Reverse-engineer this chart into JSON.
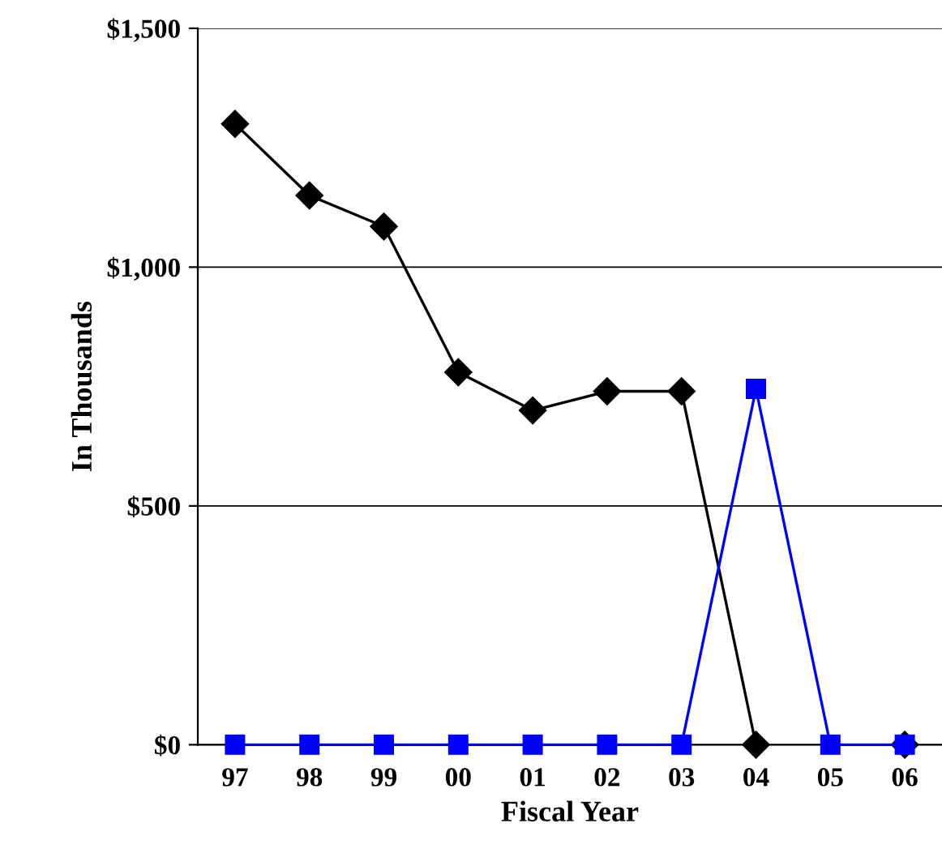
{
  "chart_data": {
    "type": "line",
    "xlabel": "Fiscal Year",
    "ylabel": "In Thousands",
    "categories": [
      "97",
      "98",
      "99",
      "00",
      "01",
      "02",
      "03",
      "04",
      "05",
      "06"
    ],
    "series": [
      {
        "color": "#000000",
        "marker": "diamond",
        "values": [
          1300,
          1150,
          1085,
          780,
          700,
          740,
          740,
          0,
          null,
          0
        ]
      },
      {
        "color": "#0000ff",
        "marker": "square",
        "values": [
          0,
          0,
          0,
          0,
          0,
          0,
          0,
          745,
          0,
          0
        ]
      }
    ],
    "ylim": [
      0,
      1500
    ],
    "yticks": [
      {
        "value": 0,
        "label": "$0"
      },
      {
        "value": 500,
        "label": "$500"
      },
      {
        "value": 1000,
        "label": "$1,000"
      },
      {
        "value": 1500,
        "label": "$1,500"
      }
    ],
    "grid": "y",
    "legend": false
  }
}
